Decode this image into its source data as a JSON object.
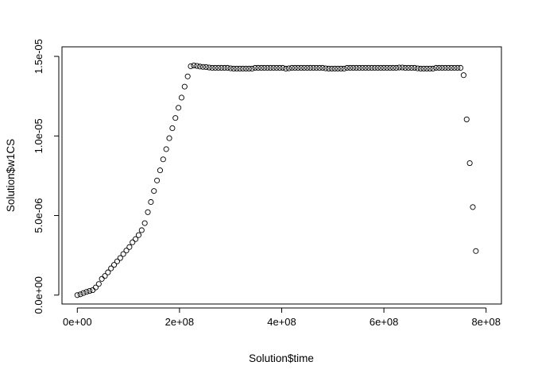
{
  "chart_data": {
    "type": "scatter",
    "title": "",
    "xlabel": "Solution$time",
    "ylabel": "Solution$w1CS",
    "xlim": [
      -30000000,
      830000000
    ],
    "ylim": [
      -5.6e-07,
      1.56e-05
    ],
    "x_ticks": [
      0,
      200000000,
      400000000,
      600000000,
      800000000
    ],
    "x_tick_labels": [
      "0e+00",
      "2e+08",
      "4e+08",
      "6e+08",
      "8e+08"
    ],
    "y_ticks": [
      0,
      5e-06,
      1e-05,
      1.5e-05
    ],
    "y_tick_labels": [
      "0.0e+00",
      "5.0e-06",
      "1.0e-05",
      "1.5e-05"
    ],
    "grid": false,
    "legend": "none",
    "marker": "open-circle",
    "colors": {
      "marker": "#000000",
      "axis": "#000000",
      "background": "#ffffff"
    },
    "series": [
      {
        "points": [
          [
            0,
            0.0
          ],
          [
            6000000,
            5e-08
          ],
          [
            12000000,
            1.3e-07
          ],
          [
            18000000,
            2e-07
          ],
          [
            24000000,
            2.6e-07
          ],
          [
            30000000,
            3.1e-07
          ],
          [
            36000000,
            4.8e-07
          ],
          [
            42000000,
            7e-07
          ],
          [
            48000000,
            1.02e-06
          ],
          [
            54000000,
            1.2e-06
          ],
          [
            60000000,
            1.43e-06
          ],
          [
            66000000,
            1.68e-06
          ],
          [
            72000000,
            1.9e-06
          ],
          [
            78000000,
            2.12e-06
          ],
          [
            84000000,
            2.33e-06
          ],
          [
            90000000,
            2.58e-06
          ],
          [
            96000000,
            2.8e-06
          ],
          [
            102000000,
            3.02e-06
          ],
          [
            108000000,
            3.32e-06
          ],
          [
            114000000,
            3.52e-06
          ],
          [
            120000000,
            3.77e-06
          ],
          [
            126000000,
            4.08e-06
          ],
          [
            132000000,
            4.52e-06
          ],
          [
            138000000,
            5.21e-06
          ],
          [
            144000000,
            5.85e-06
          ],
          [
            150000000,
            6.54e-06
          ],
          [
            156000000,
            7.2e-06
          ],
          [
            162000000,
            7.84e-06
          ],
          [
            168000000,
            8.53e-06
          ],
          [
            174000000,
            9.17e-06
          ],
          [
            180000000,
            9.86e-06
          ],
          [
            186000000,
            1.049e-05
          ],
          [
            192000000,
            1.113e-05
          ],
          [
            198000000,
            1.177e-05
          ],
          [
            204000000,
            1.241e-05
          ],
          [
            210000000,
            1.31e-05
          ],
          [
            216000000,
            1.374e-05
          ],
          [
            222000000,
            1.438e-05
          ],
          [
            228000000,
            1.443e-05
          ],
          [
            234000000,
            1.44e-05
          ],
          [
            240000000,
            1.436e-05
          ],
          [
            246000000,
            1.434e-05
          ],
          [
            252000000,
            1.433e-05
          ],
          [
            258000000,
            1.43e-05
          ],
          [
            264000000,
            1.428e-05
          ],
          [
            270000000,
            1.428e-05
          ],
          [
            276000000,
            1.428e-05
          ],
          [
            282000000,
            1.428e-05
          ],
          [
            288000000,
            1.428e-05
          ],
          [
            294000000,
            1.428e-05
          ],
          [
            300000000,
            1.425e-05
          ],
          [
            306000000,
            1.423e-05
          ],
          [
            312000000,
            1.423e-05
          ],
          [
            318000000,
            1.423e-05
          ],
          [
            324000000,
            1.423e-05
          ],
          [
            330000000,
            1.423e-05
          ],
          [
            336000000,
            1.423e-05
          ],
          [
            342000000,
            1.423e-05
          ],
          [
            348000000,
            1.428e-05
          ],
          [
            354000000,
            1.428e-05
          ],
          [
            360000000,
            1.428e-05
          ],
          [
            366000000,
            1.428e-05
          ],
          [
            372000000,
            1.428e-05
          ],
          [
            378000000,
            1.428e-05
          ],
          [
            384000000,
            1.428e-05
          ],
          [
            390000000,
            1.428e-05
          ],
          [
            396000000,
            1.428e-05
          ],
          [
            402000000,
            1.428e-05
          ],
          [
            408000000,
            1.423e-05
          ],
          [
            414000000,
            1.425e-05
          ],
          [
            420000000,
            1.428e-05
          ],
          [
            426000000,
            1.428e-05
          ],
          [
            432000000,
            1.428e-05
          ],
          [
            438000000,
            1.428e-05
          ],
          [
            444000000,
            1.428e-05
          ],
          [
            450000000,
            1.428e-05
          ],
          [
            456000000,
            1.428e-05
          ],
          [
            462000000,
            1.428e-05
          ],
          [
            468000000,
            1.428e-05
          ],
          [
            474000000,
            1.428e-05
          ],
          [
            480000000,
            1.428e-05
          ],
          [
            486000000,
            1.425e-05
          ],
          [
            492000000,
            1.423e-05
          ],
          [
            498000000,
            1.423e-05
          ],
          [
            504000000,
            1.423e-05
          ],
          [
            510000000,
            1.423e-05
          ],
          [
            516000000,
            1.423e-05
          ],
          [
            522000000,
            1.423e-05
          ],
          [
            528000000,
            1.428e-05
          ],
          [
            534000000,
            1.428e-05
          ],
          [
            540000000,
            1.428e-05
          ],
          [
            546000000,
            1.428e-05
          ],
          [
            552000000,
            1.428e-05
          ],
          [
            558000000,
            1.428e-05
          ],
          [
            564000000,
            1.428e-05
          ],
          [
            570000000,
            1.428e-05
          ],
          [
            576000000,
            1.428e-05
          ],
          [
            582000000,
            1.428e-05
          ],
          [
            588000000,
            1.428e-05
          ],
          [
            594000000,
            1.428e-05
          ],
          [
            600000000,
            1.428e-05
          ],
          [
            606000000,
            1.428e-05
          ],
          [
            612000000,
            1.428e-05
          ],
          [
            618000000,
            1.428e-05
          ],
          [
            624000000,
            1.428e-05
          ],
          [
            630000000,
            1.43e-05
          ],
          [
            636000000,
            1.43e-05
          ],
          [
            642000000,
            1.428e-05
          ],
          [
            648000000,
            1.428e-05
          ],
          [
            654000000,
            1.428e-05
          ],
          [
            660000000,
            1.428e-05
          ],
          [
            666000000,
            1.425e-05
          ],
          [
            672000000,
            1.423e-05
          ],
          [
            678000000,
            1.423e-05
          ],
          [
            684000000,
            1.423e-05
          ],
          [
            690000000,
            1.423e-05
          ],
          [
            696000000,
            1.423e-05
          ],
          [
            702000000,
            1.428e-05
          ],
          [
            708000000,
            1.428e-05
          ],
          [
            714000000,
            1.428e-05
          ],
          [
            720000000,
            1.428e-05
          ],
          [
            726000000,
            1.428e-05
          ],
          [
            732000000,
            1.428e-05
          ],
          [
            738000000,
            1.428e-05
          ],
          [
            744000000,
            1.428e-05
          ],
          [
            750000000,
            1.428e-05
          ],
          [
            756000000,
            1.382e-05
          ],
          [
            762000000,
            1.104e-05
          ],
          [
            768000000,
            8.29e-06
          ],
          [
            774000000,
            5.53e-06
          ],
          [
            780000000,
            2.77e-06
          ]
        ]
      }
    ]
  }
}
